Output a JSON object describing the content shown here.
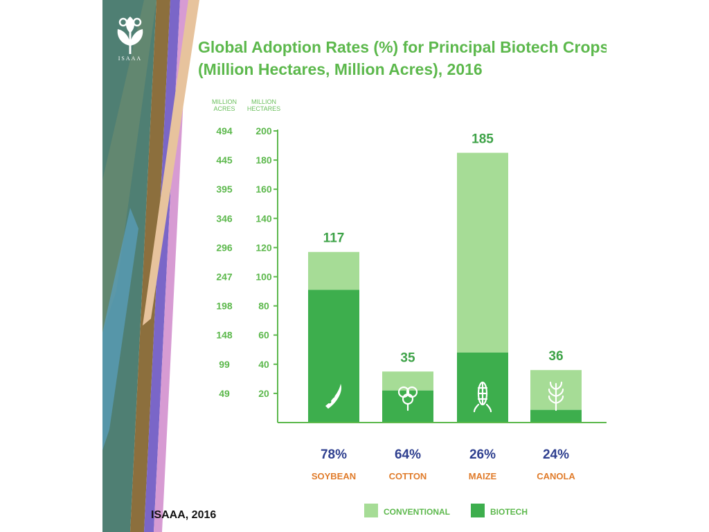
{
  "logo": {
    "text": "ISAAA"
  },
  "title": {
    "line1": "Global Adoption Rates (%) for Principal Biotech Crops",
    "line2": "(Million Hectares, Million Acres), 2016"
  },
  "source": "ISAAA, 2016",
  "colors": {
    "conventional": "#a6dc96",
    "biotech": "#3dae4d",
    "title": "#5cb84c",
    "percent": "#2e3f8f",
    "category": "#e07b2a"
  },
  "chart_data": {
    "type": "bar",
    "stacked": true,
    "axis_headers": {
      "acres": [
        "MILLION",
        "ACRES"
      ],
      "hectares": [
        "MILLION",
        "HECTARES"
      ]
    },
    "y_ticks_hectares": [
      "20",
      "40",
      "60",
      "80",
      "100",
      "120",
      "140",
      "160",
      "180",
      "200"
    ],
    "y_ticks_acres": [
      "49",
      "99",
      "148",
      "198",
      "247",
      "296",
      "346",
      "395",
      "445",
      "494"
    ],
    "ylim": [
      0,
      200
    ],
    "categories": [
      "SOYBEAN",
      "COTTON",
      "MAIZE",
      "CANOLA"
    ],
    "totals": [
      117,
      35,
      185,
      36
    ],
    "total_labels": [
      "117",
      "35",
      "185",
      "36"
    ],
    "adoption_percent_labels": [
      "78%",
      "64%",
      "26%",
      "24%"
    ],
    "series": [
      {
        "name": "BIOTECH",
        "values": [
          91,
          22,
          48,
          8.7
        ]
      },
      {
        "name": "CONVENTIONAL",
        "values": [
          26,
          13,
          137,
          27.3
        ]
      }
    ],
    "crop_icons": [
      "soybean-pod-icon",
      "cotton-boll-icon",
      "corn-cob-icon",
      "canola-plant-icon"
    ],
    "grid": false,
    "legend": {
      "position": "bottom",
      "items": [
        "CONVENTIONAL",
        "BIOTECH"
      ]
    }
  }
}
